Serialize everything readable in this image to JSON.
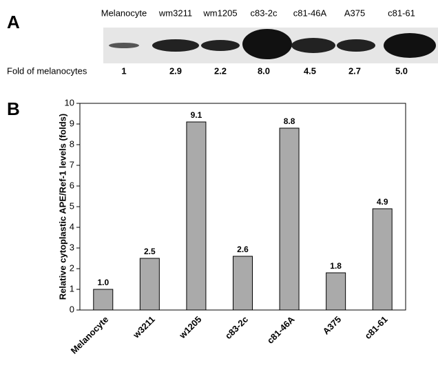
{
  "panel_a": {
    "label": "A",
    "lanes": [
      "Melanocyte",
      "wm3211",
      "wm1205",
      "c83-2c",
      "c81-46A",
      "A375",
      "c81-61"
    ],
    "fold_label": "Fold of melanocytes",
    "folds": [
      "1",
      "2.9",
      "2.2",
      "8.0",
      "4.5",
      "2.7",
      "5.0"
    ]
  },
  "panel_b": {
    "label": "B"
  },
  "chart_data": {
    "type": "bar",
    "ylabel": "Relative cytoplastic APE/Ref-1 levels (folds)",
    "categories": [
      "Melanocyte",
      "w3211",
      "w1205",
      "c83-2c",
      "c81-46A",
      "A375",
      "c81-61"
    ],
    "values": [
      1.0,
      2.5,
      9.1,
      2.6,
      8.8,
      1.8,
      4.9
    ],
    "value_labels": [
      "1.0",
      "2.5",
      "9.1",
      "2.6",
      "8.8",
      "1.8",
      "4.9"
    ],
    "color": "#aaaaaa",
    "ylim": [
      0,
      10
    ],
    "yticks": [
      0,
      1,
      2,
      3,
      4,
      5,
      6,
      7,
      8,
      9,
      10
    ]
  }
}
